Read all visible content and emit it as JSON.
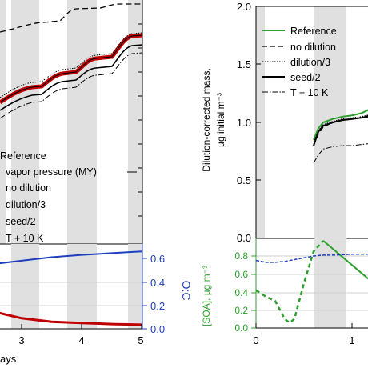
{
  "colors": {
    "reference_green": "#2ca02c",
    "reference_red": "#c00000",
    "oc_blue": "#1f3fbf",
    "shade": "#e0e0e0",
    "grid": "#d0d0d0"
  },
  "left_panel": {
    "legend": [
      "Reference",
      "vapor pressure (MY)",
      "no dilution",
      "dilution/3",
      "seed/2",
      "T + 10 K"
    ],
    "x_label": "ays",
    "x_ticks": [
      "3",
      "4",
      "5"
    ],
    "oc_label": "O:C",
    "oc_ticks": [
      "0.0",
      "0.2",
      "0.4",
      "0.6"
    ]
  },
  "right_panel": {
    "y_label_line1": "Dilution-corrected mass,",
    "y_label_line2": "µg initial m⁻³",
    "y_ticks": [
      "0.0",
      "0.5",
      "1.0",
      "1.5",
      "2.0"
    ],
    "legend": [
      "Reference",
      "no dilution",
      "dilution/3",
      "seed/2",
      "T + 10 K"
    ],
    "soa_label": "[SOA], µg m⁻³",
    "soa_ticks": [
      "0.0",
      "0.2",
      "0.4",
      "0.6",
      "0.8"
    ],
    "x_ticks": [
      "0",
      "1"
    ]
  },
  "chart_data": [
    {
      "type": "line",
      "panel": "left-lower",
      "x": [
        1.8,
        2.5,
        3.0,
        3.5,
        4.0,
        4.5,
        5.0
      ],
      "series": [
        {
          "name": "O:C",
          "axis": "right",
          "values": [
            0.46,
            0.55,
            0.58,
            0.61,
            0.63,
            0.645,
            0.66
          ]
        },
        {
          "name": "Reference",
          "axis": "left",
          "values": [
            0.36,
            0.15,
            0.09,
            0.06,
            0.05,
            0.04,
            0.035
          ]
        }
      ],
      "y2label": "O:C",
      "y2lim": [
        0,
        0.65
      ],
      "xlim": [
        2,
        5
      ]
    },
    {
      "type": "line",
      "panel": "right-upper",
      "x": [
        0.6,
        0.65,
        0.7,
        0.8,
        0.9,
        1.0,
        1.1,
        1.2
      ],
      "series": [
        {
          "name": "Reference",
          "values": [
            0.85,
            0.95,
            1.0,
            1.03,
            1.05,
            1.06,
            1.08,
            1.12
          ]
        },
        {
          "name": "no dilution",
          "values": [
            0.8,
            0.9,
            0.96,
            1.0,
            1.02,
            1.03,
            1.04,
            1.05
          ]
        },
        {
          "name": "dilution/3",
          "values": [
            0.83,
            0.93,
            0.98,
            1.01,
            1.03,
            1.04,
            1.05,
            1.07
          ]
        },
        {
          "name": "seed/2",
          "values": [
            0.8,
            0.92,
            0.97,
            1.0,
            1.02,
            1.03,
            1.04,
            1.06
          ]
        },
        {
          "name": "T + 10 K",
          "values": [
            0.65,
            0.72,
            0.77,
            0.79,
            0.8,
            0.8,
            0.81,
            0.82
          ]
        }
      ],
      "ylabel": "Dilution-corrected mass, µg initial m⁻³",
      "ylim": [
        0,
        2.0
      ],
      "xlim": [
        0,
        1.2
      ]
    },
    {
      "type": "line",
      "panel": "right-lower",
      "x": [
        0,
        0.1,
        0.2,
        0.3,
        0.35,
        0.4,
        0.5,
        0.6,
        0.7,
        0.8,
        1.0,
        1.2
      ],
      "series": [
        {
          "name": "[SOA] dashed",
          "values": [
            0.42,
            0.35,
            0.3,
            0.1,
            0.06,
            0.1,
            0.5,
            0.85,
            0.97,
            0.88,
            0.7,
            0.52
          ]
        },
        {
          "name": "O:C",
          "values": [
            0.75,
            0.73,
            0.73,
            0.74,
            0.75,
            0.76,
            0.78,
            0.8,
            0.81,
            0.81,
            0.82,
            0.82
          ]
        }
      ],
      "ylabel": "[SOA], µg m⁻³",
      "ylim": [
        0,
        0.9
      ],
      "xlim": [
        0,
        1.2
      ]
    }
  ]
}
